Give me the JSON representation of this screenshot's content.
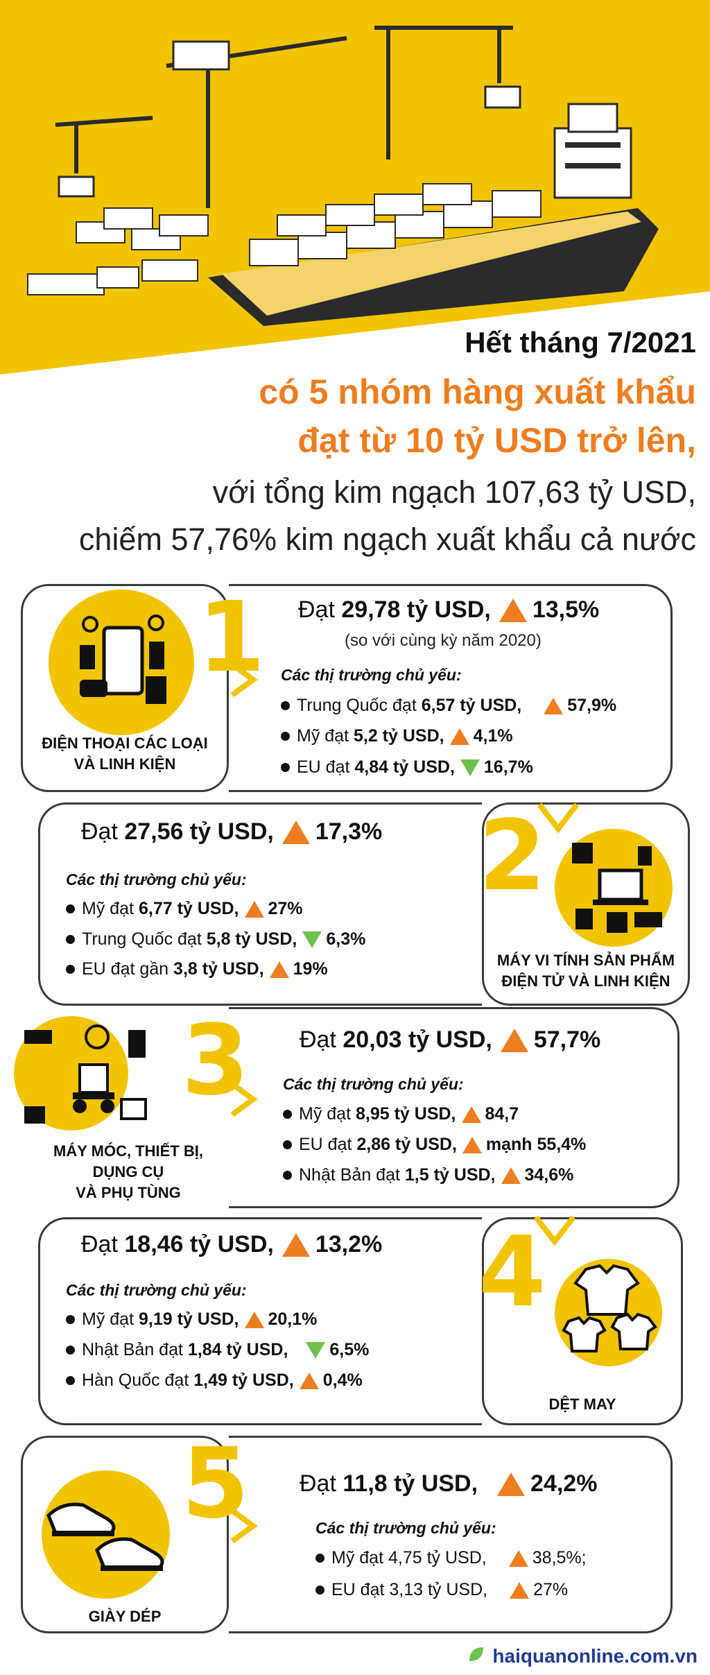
{
  "headline": {
    "line1": "Hết tháng 7/2021",
    "line2": "có 5 nhóm hàng xuất khẩu",
    "line3": "đạt từ 10 tỷ USD trở lên,",
    "line4": "với tổng kim ngạch 107,63 tỷ USD,",
    "line5": "chiếm 57,76% kim ngạch xuất khẩu cả nước"
  },
  "market_title": "Các thị trường chủ yếu:",
  "groups": [
    {
      "number": "1",
      "label_lines": [
        "ĐIỆN THOẠI CÁC LOẠI",
        "VÀ LINH KIỆN"
      ],
      "main_prefix": "Đạt ",
      "main_value": "29,78 tỷ USD,",
      "main_change": "13,5%",
      "note": "(so với cùng kỳ năm 2020)",
      "markets": [
        {
          "prefix": "Trung Quốc đạt ",
          "value": "6,57 tỷ USD,",
          "dir": "up",
          "change": "57,9%"
        },
        {
          "prefix": "Mỹ đạt ",
          "value": "5,2 tỷ USD,",
          "dir": "up",
          "change": "4,1%"
        },
        {
          "prefix": "EU đạt ",
          "value": "4,84 tỷ USD,",
          "dir": "down",
          "change": "16,7%"
        }
      ]
    },
    {
      "number": "2",
      "label_lines": [
        "MÁY VI TÍNH SẢN PHẨM",
        "ĐIỆN TỬ VÀ LINH KIỆN"
      ],
      "main_prefix": "Đạt ",
      "main_value": "27,56 tỷ USD,",
      "main_change": "17,3%",
      "markets": [
        {
          "prefix": "Mỹ đạt ",
          "value": "6,77 tỷ USD,",
          "dir": "up",
          "change": "27%"
        },
        {
          "prefix": "Trung Quốc đạt ",
          "value": "5,8 tỷ USD,",
          "dir": "down",
          "change": "6,3%"
        },
        {
          "prefix": "EU đạt gần ",
          "value": "3,8 tỷ USD,",
          "dir": "up",
          "change": "19%"
        }
      ]
    },
    {
      "number": "3",
      "label_lines": [
        "MÁY MÓC, THIẾT BỊ,",
        "DỤNG CỤ",
        "VÀ PHỤ TÙNG"
      ],
      "main_prefix": "Đạt ",
      "main_value": "20,03 tỷ USD,",
      "main_change": "57,7%",
      "markets": [
        {
          "prefix": "Mỹ đạt ",
          "value": "8,95 tỷ USD,",
          "dir": "up",
          "change": "84,7"
        },
        {
          "prefix": "EU đạt ",
          "value": "2,86 tỷ USD,",
          "dir": "up",
          "change": "mạnh 55,4%"
        },
        {
          "prefix": "Nhật Bản đạt ",
          "value": "1,5 tỷ USD,",
          "dir": "up",
          "change": "34,6%"
        }
      ]
    },
    {
      "number": "4",
      "label_lines": [
        "DỆT MAY"
      ],
      "main_prefix": "Đạt ",
      "main_value": "18,46 tỷ USD,",
      "main_change": "13,2%",
      "markets": [
        {
          "prefix": "Mỹ đạt ",
          "value": "9,19 tỷ USD,",
          "dir": "up",
          "change": "20,1%"
        },
        {
          "prefix": "Nhật Bản đạt ",
          "value": "1,84 tỷ USD,",
          "dir": "down",
          "change": "6,5%"
        },
        {
          "prefix": "Hàn Quốc đạt ",
          "value": "1,49 tỷ USD,",
          "dir": "up",
          "change": "0,4%"
        }
      ]
    },
    {
      "number": "5",
      "label_lines": [
        "GIÀY DÉP"
      ],
      "main_prefix": "Đạt ",
      "main_value": "11,8 tỷ USD,",
      "main_change": "24,2%",
      "markets": [
        {
          "prefix": "Mỹ đạt 4,75 tỷ USD,",
          "value": "",
          "dir": "up",
          "change": "38,5%;"
        },
        {
          "prefix": "EU đạt 3,13 tỷ USD,",
          "value": "",
          "dir": "up",
          "change": "27%"
        }
      ]
    }
  ],
  "footer": "haiquanonline.com.vn",
  "colors": {
    "accent_yellow": "#f2c400",
    "accent_orange": "#ee7d1f",
    "down_green": "#6cc24a"
  },
  "icons": [
    "ship-illustration",
    "crane-icon",
    "phone-devices-icon",
    "computer-devices-icon",
    "tools-icon",
    "shirt-icon",
    "sneaker-icon",
    "leaf-icon"
  ]
}
